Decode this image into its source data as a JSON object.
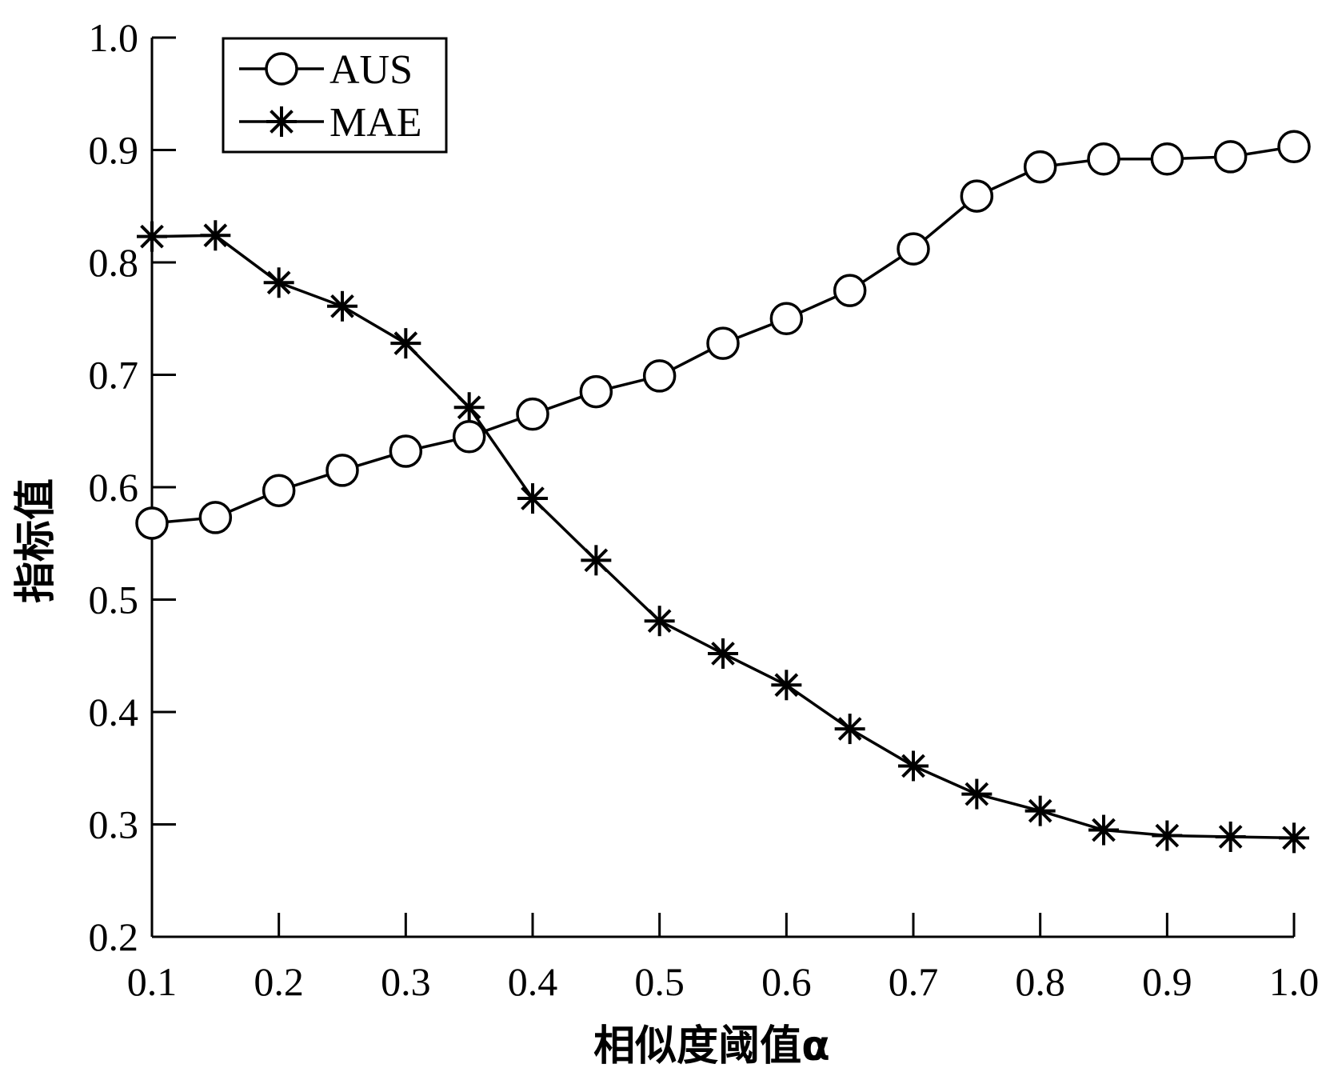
{
  "chart_data": {
    "type": "line",
    "xlabel": "相似度阈值α",
    "ylabel": "指标值",
    "xlim": [
      0.1,
      1.0
    ],
    "ylim": [
      0.2,
      1.0
    ],
    "xticks": [
      "0.1",
      "0.2",
      "0.3",
      "0.4",
      "0.5",
      "0.6",
      "0.7",
      "0.8",
      "0.9",
      "1.0"
    ],
    "yticks": [
      "0.2",
      "0.3",
      "0.4",
      "0.5",
      "0.6",
      "0.7",
      "0.8",
      "0.9",
      "1.0"
    ],
    "grid": false,
    "legend_position": "top-left",
    "x": [
      0.1,
      0.15,
      0.2,
      0.25,
      0.3,
      0.35,
      0.4,
      0.45,
      0.5,
      0.55,
      0.6,
      0.65,
      0.7,
      0.75,
      0.8,
      0.85,
      0.9,
      0.95,
      1.0
    ],
    "series": [
      {
        "name": "AUS",
        "marker": "circle",
        "values": [
          0.568,
          0.573,
          0.597,
          0.615,
          0.632,
          0.645,
          0.665,
          0.685,
          0.699,
          0.728,
          0.75,
          0.775,
          0.812,
          0.859,
          0.885,
          0.892,
          0.892,
          0.894,
          0.903
        ]
      },
      {
        "name": "MAE",
        "marker": "asterisk",
        "values": [
          0.823,
          0.824,
          0.782,
          0.761,
          0.728,
          0.671,
          0.59,
          0.535,
          0.481,
          0.452,
          0.424,
          0.385,
          0.352,
          0.327,
          0.312,
          0.295,
          0.29,
          0.289,
          0.288
        ]
      }
    ]
  }
}
